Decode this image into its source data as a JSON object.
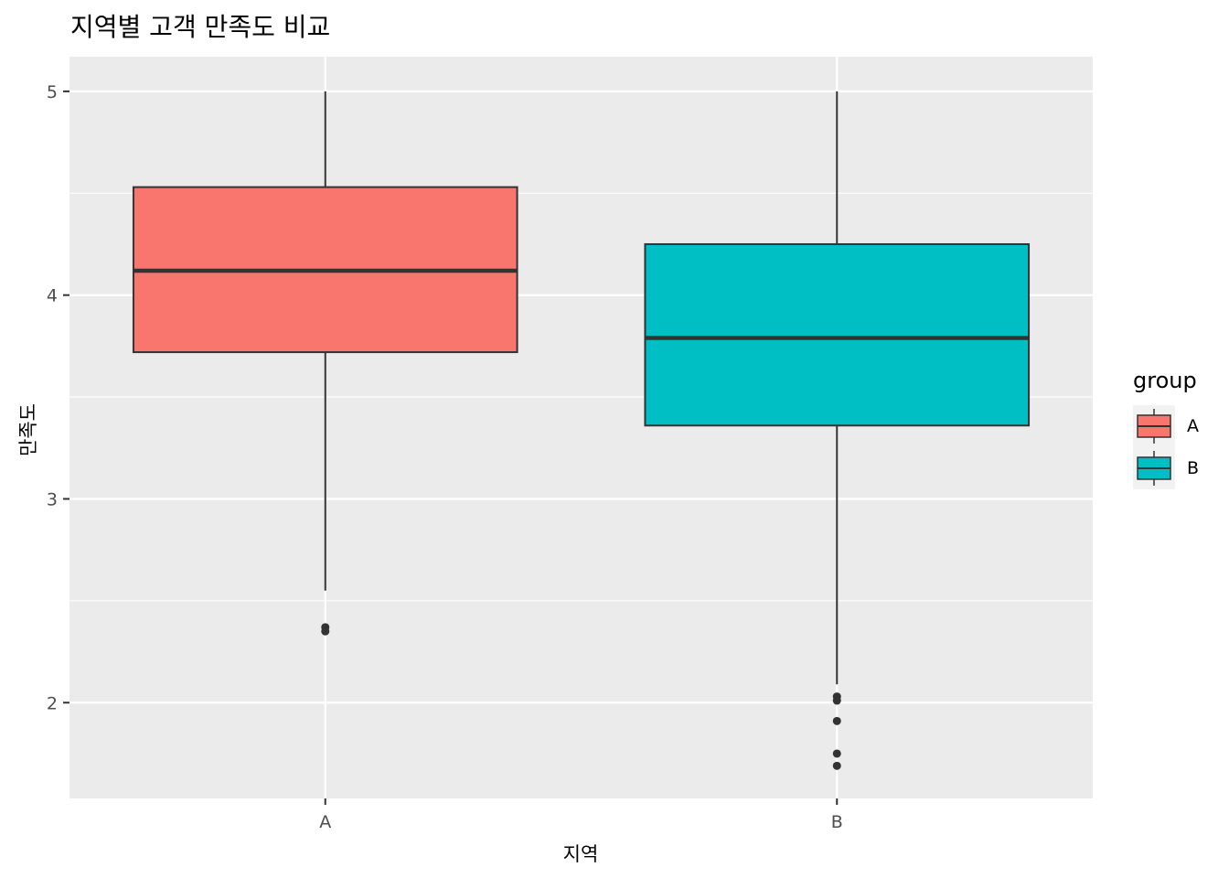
{
  "chart_data": {
    "type": "boxplot",
    "title": "지역별 고객 만족도 비교",
    "xlabel": "지역",
    "ylabel": "만족도",
    "categories": [
      "A",
      "B"
    ],
    "ylim": [
      1.53,
      5.17
    ],
    "yticks": [
      2,
      3,
      4,
      5
    ],
    "grid": true,
    "legend": {
      "title": "group",
      "position": "right",
      "entries": [
        "A",
        "B"
      ]
    },
    "colors": {
      "A": "#F8766D",
      "B": "#00BFC4",
      "panel": "#EBEBEB",
      "grid": "#FFFFFF",
      "box_line": "#333333"
    },
    "boxes": [
      {
        "category": "A",
        "whisker_low": 2.55,
        "q1": 3.72,
        "median": 4.12,
        "q3": 4.53,
        "whisker_high": 5.0,
        "outliers": [
          2.35,
          2.37
        ]
      },
      {
        "category": "B",
        "whisker_low": 2.09,
        "q1": 3.36,
        "median": 3.79,
        "q3": 4.25,
        "whisker_high": 5.0,
        "outliers": [
          1.69,
          1.75,
          1.91,
          2.01,
          2.03
        ]
      }
    ]
  }
}
